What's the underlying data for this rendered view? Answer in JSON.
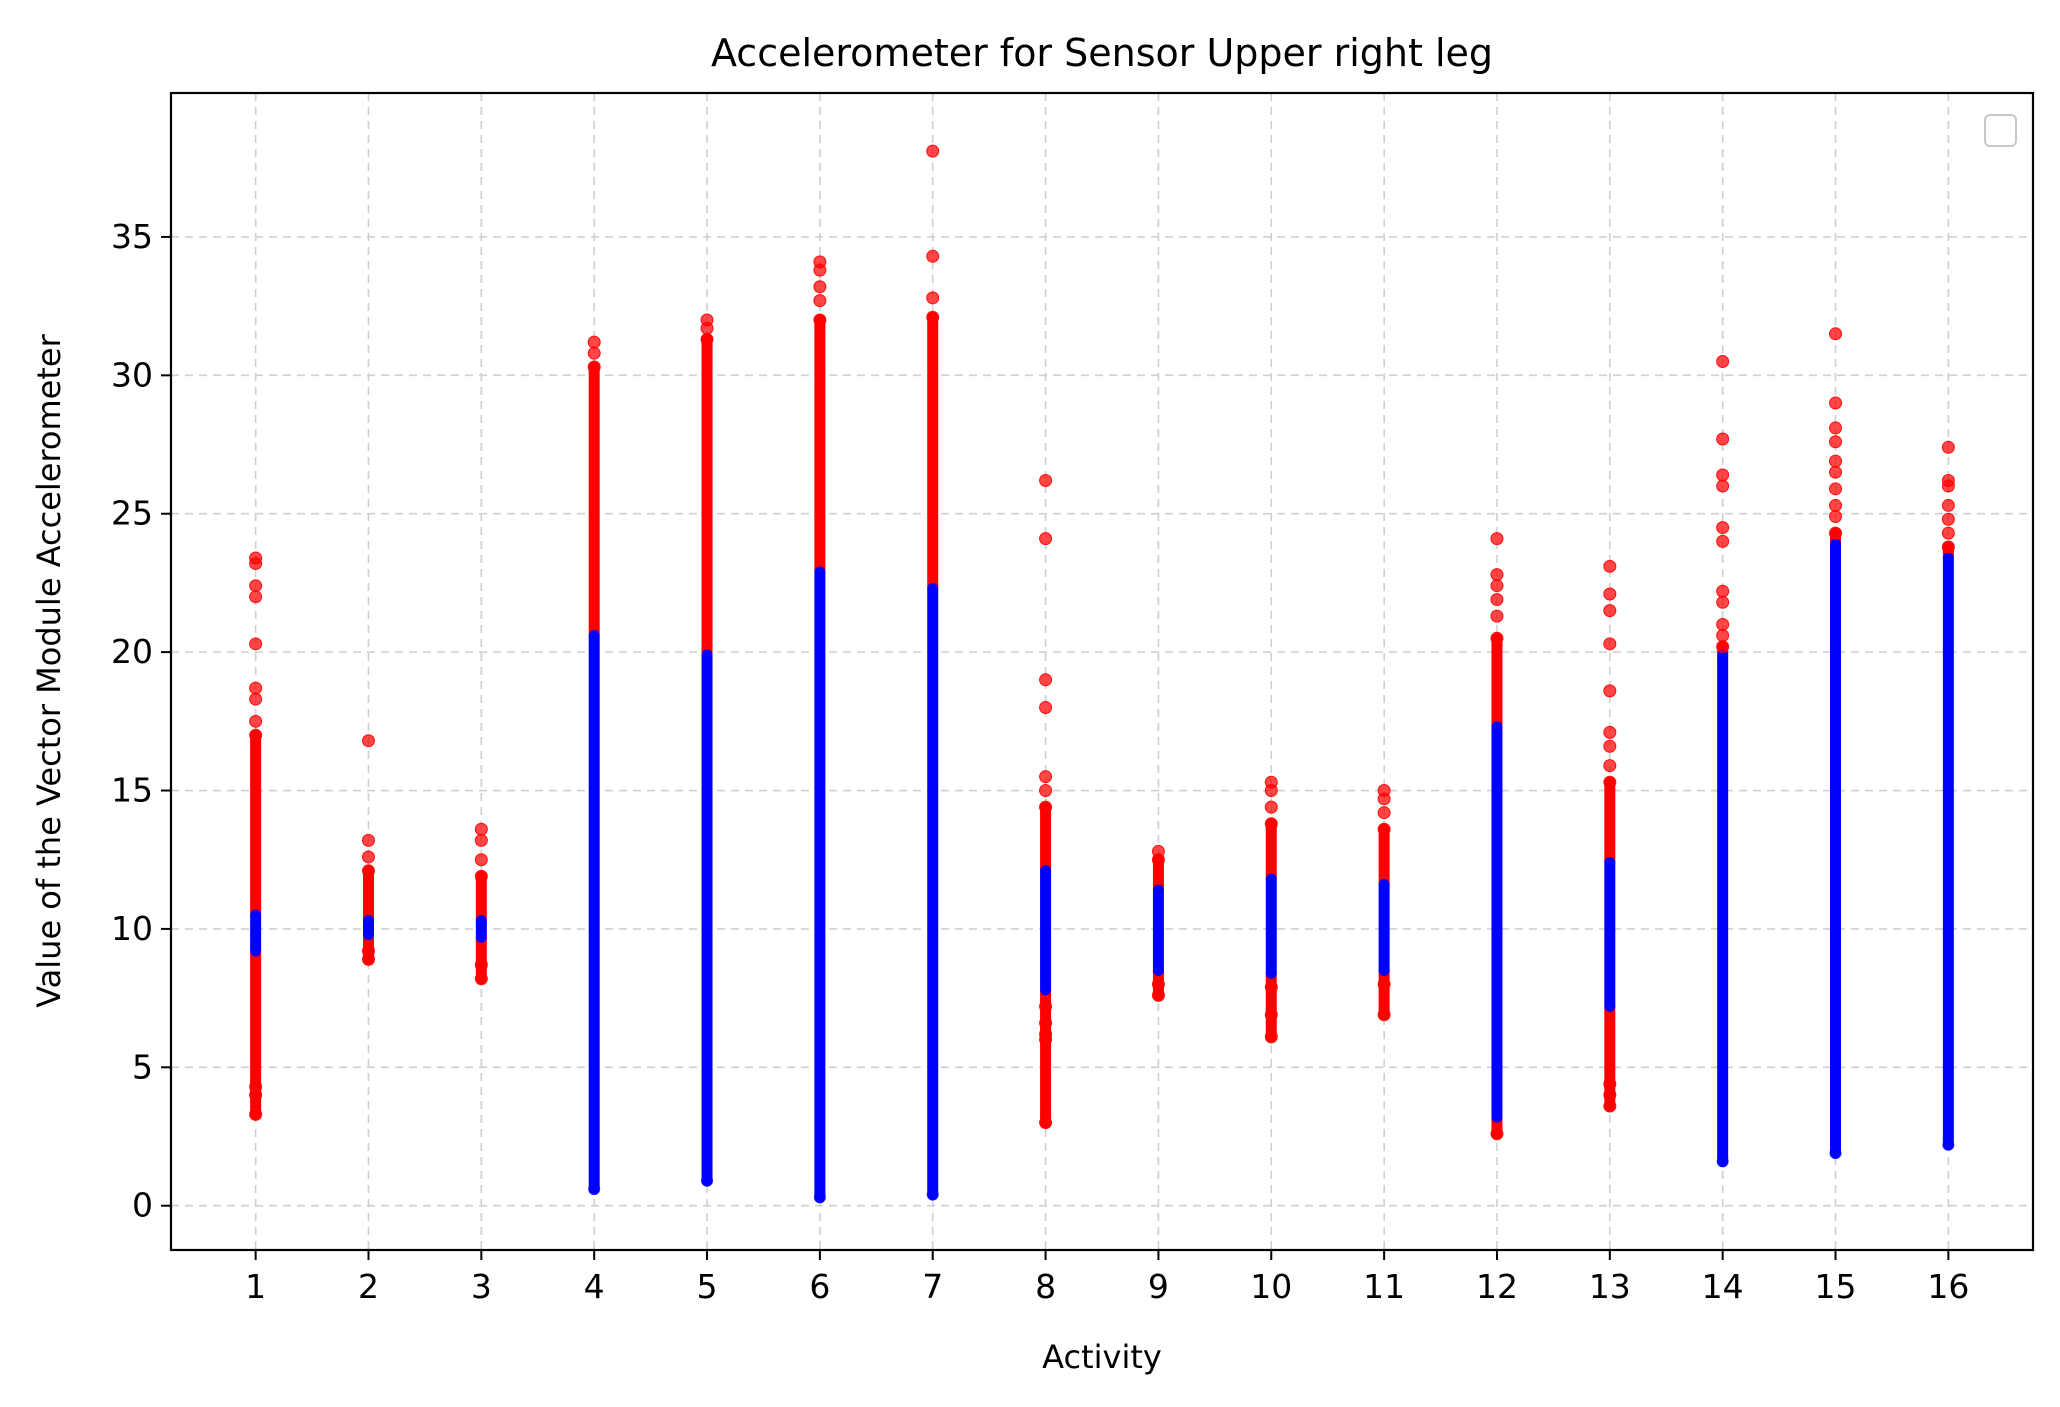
{
  "chart_data": {
    "type": "scatter",
    "title": "Accelerometer for Sensor Upper right leg",
    "xlabel": "Activity",
    "ylabel": "Value of the Vector Module Accelerometer",
    "xlim": [
      0.25,
      16.75
    ],
    "ylim": [
      -1.6,
      40.2
    ],
    "x_ticks": [
      1,
      2,
      3,
      4,
      5,
      6,
      7,
      8,
      9,
      10,
      11,
      12,
      13,
      14,
      15,
      16
    ],
    "y_ticks": [
      0,
      5,
      10,
      15,
      20,
      25,
      30,
      35
    ],
    "grid": true,
    "legend": {
      "placement": "top-right",
      "entries": []
    },
    "colors": {
      "inlier": "#0000ff",
      "outlier": "#ff0000"
    },
    "activities": [
      {
        "activity": 1,
        "min": 3.3,
        "max": 23.4,
        "inlier_low": 9.2,
        "inlier_high": 10.5,
        "outliers": [
          23.4,
          23.2,
          22.4,
          22.0,
          20.3,
          18.7,
          18.3,
          17.5,
          17.0,
          4.3,
          4.0,
          3.3
        ]
      },
      {
        "activity": 2,
        "min": 8.9,
        "max": 16.8,
        "inlier_low": 9.8,
        "inlier_high": 10.3,
        "outliers": [
          16.8,
          13.2,
          12.6,
          12.1,
          9.2,
          8.9
        ]
      },
      {
        "activity": 3,
        "min": 8.2,
        "max": 13.6,
        "inlier_low": 9.7,
        "inlier_high": 10.3,
        "outliers": [
          13.6,
          13.2,
          12.5,
          11.9,
          8.7,
          8.2
        ]
      },
      {
        "activity": 4,
        "min": 0.6,
        "max": 31.2,
        "inlier_low": 0.6,
        "inlier_high": 20.6,
        "outliers": [
          31.2,
          30.8,
          30.3
        ]
      },
      {
        "activity": 5,
        "min": 0.9,
        "max": 32.0,
        "inlier_low": 0.9,
        "inlier_high": 19.9,
        "outliers": [
          32.0,
          31.7,
          31.3
        ]
      },
      {
        "activity": 6,
        "min": 0.3,
        "max": 34.1,
        "inlier_low": 0.3,
        "inlier_high": 22.9,
        "outliers": [
          34.1,
          33.8,
          33.2,
          32.7,
          32.0
        ]
      },
      {
        "activity": 7,
        "min": 0.4,
        "max": 38.1,
        "inlier_low": 0.4,
        "inlier_high": 22.3,
        "outliers": [
          38.1,
          34.3,
          32.8,
          32.1
        ]
      },
      {
        "activity": 8,
        "min": 3.0,
        "max": 26.2,
        "inlier_low": 7.8,
        "inlier_high": 12.1,
        "outliers": [
          26.2,
          24.1,
          19.0,
          18.0,
          15.5,
          15.0,
          14.4,
          7.2,
          6.6,
          6.2,
          6.0,
          3.0
        ]
      },
      {
        "activity": 9,
        "min": 7.6,
        "max": 12.8,
        "inlier_low": 8.5,
        "inlier_high": 11.4,
        "outliers": [
          12.8,
          12.5,
          8.0,
          7.6
        ]
      },
      {
        "activity": 10,
        "min": 6.1,
        "max": 15.3,
        "inlier_low": 8.4,
        "inlier_high": 11.8,
        "outliers": [
          15.3,
          15.0,
          14.4,
          13.8,
          7.9,
          6.9,
          6.1
        ]
      },
      {
        "activity": 11,
        "min": 6.9,
        "max": 15.0,
        "inlier_low": 8.5,
        "inlier_high": 11.6,
        "outliers": [
          15.0,
          14.7,
          14.2,
          13.6,
          8.0,
          6.9
        ]
      },
      {
        "activity": 12,
        "min": 2.6,
        "max": 24.1,
        "inlier_low": 3.2,
        "inlier_high": 17.3,
        "outliers": [
          24.1,
          22.8,
          22.4,
          21.9,
          21.3,
          20.5,
          2.6
        ]
      },
      {
        "activity": 13,
        "min": 3.6,
        "max": 23.1,
        "inlier_low": 7.2,
        "inlier_high": 12.4,
        "outliers": [
          23.1,
          22.1,
          21.5,
          20.3,
          18.6,
          17.1,
          16.6,
          15.9,
          15.3,
          4.4,
          4.0,
          3.6
        ]
      },
      {
        "activity": 14,
        "min": 1.6,
        "max": 30.5,
        "inlier_low": 1.6,
        "inlier_high": 19.9,
        "outliers": [
          30.5,
          27.7,
          26.4,
          26.0,
          24.5,
          24.0,
          22.2,
          21.8,
          21.0,
          20.6,
          20.2
        ]
      },
      {
        "activity": 15,
        "min": 1.9,
        "max": 31.5,
        "inlier_low": 1.9,
        "inlier_high": 23.9,
        "outliers": [
          31.5,
          29.0,
          28.1,
          27.6,
          26.9,
          26.5,
          25.9,
          25.3,
          24.9,
          24.3
        ]
      },
      {
        "activity": 16,
        "min": 2.2,
        "max": 27.4,
        "inlier_low": 2.2,
        "inlier_high": 23.4,
        "outliers": [
          27.4,
          26.2,
          26.0,
          25.3,
          24.8,
          24.3,
          23.8
        ]
      }
    ]
  }
}
